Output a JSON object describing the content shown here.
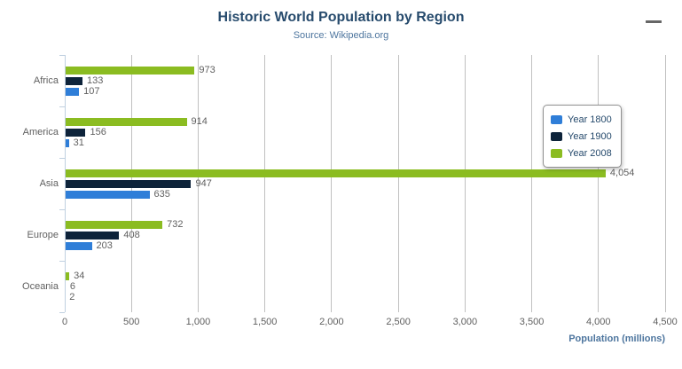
{
  "header": {
    "title": "Historic World Population by Region",
    "subtitle": "Source: Wikipedia.org"
  },
  "toolbar": {
    "context_menu_icon": "hamburger-icon"
  },
  "chart_data": {
    "type": "bar",
    "orientation": "horizontal",
    "categories": [
      "Africa",
      "America",
      "Asia",
      "Europe",
      "Oceania"
    ],
    "series": [
      {
        "name": "Year 1800",
        "color": "#2f7ed8",
        "values": [
          107,
          31,
          635,
          203,
          2
        ]
      },
      {
        "name": "Year 1900",
        "color": "#0d233a",
        "values": [
          133,
          156,
          947,
          408,
          6
        ]
      },
      {
        "name": "Year 2008",
        "color": "#8bbc21",
        "values": [
          973,
          914,
          4054,
          732,
          34
        ]
      }
    ],
    "bar_order_top_to_bottom": [
      "Year 2008",
      "Year 1900",
      "Year 1800"
    ],
    "title": "Historic World Population by Region",
    "subtitle": "Source: Wikipedia.org",
    "xlabel": "Population (millions)",
    "ylabel": "",
    "xlim": [
      0,
      4500
    ],
    "xticks": [
      0,
      500,
      1000,
      1500,
      2000,
      2500,
      3000,
      3500,
      4000,
      4500
    ],
    "xtick_labels": [
      "0",
      "500",
      "1,000",
      "1,500",
      "2,000",
      "2,500",
      "3,000",
      "3,500",
      "4,000",
      "4,500"
    ],
    "data_labels": [
      [
        "107",
        "31",
        "635",
        "203",
        "2"
      ],
      [
        "133",
        "156",
        "947",
        "408",
        "6"
      ],
      [
        "973",
        "914",
        "4,054",
        "732",
        "34"
      ]
    ],
    "grid": true,
    "legend_position": "right-middle",
    "legend_entries": [
      "Year 1800",
      "Year 1900",
      "Year 2008"
    ]
  },
  "style": {
    "title_color": "#274b6d",
    "subtitle_color": "#4d759e",
    "axis_title_color": "#4d759e",
    "label_color": "#606060",
    "grid_color": "#c0c0c0",
    "axis_line_color": "#c0d0e0",
    "legend_border_color": "#909090",
    "menu_icon_color": "#666666"
  }
}
